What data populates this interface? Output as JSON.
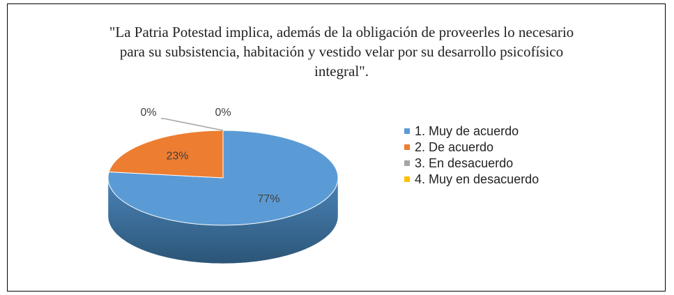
{
  "chart_data": {
    "type": "pie",
    "title": "\"La Patria Potestad implica, además de la obligación de proveerles lo necesario para su subsistencia, habitación y vestido velar por su desarrollo psicofísico integral\".",
    "categories": [
      "1. Muy de acuerdo",
      "2. De acuerdo",
      "3. En desacuerdo",
      "4. Muy en desacuerdo"
    ],
    "values": [
      77,
      23,
      0,
      0
    ],
    "value_labels": [
      "77%",
      "23%",
      "0%",
      "0%"
    ],
    "colors": [
      "#5b9bd5",
      "#ed7d31",
      "#a5a5a5",
      "#ffc000"
    ],
    "legend": "right"
  }
}
